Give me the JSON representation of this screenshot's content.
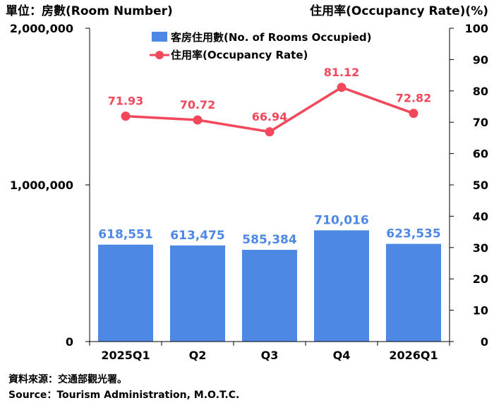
{
  "left_axis_title": "單位：房數(Room Number)",
  "right_axis_title": "住用率(Occupancy Rate)(%)",
  "source_zh": "資料來源：交通部觀光署。",
  "source_en": "Source：Tourism Administration, M.O.T.C.",
  "colors": {
    "bar": "#4E88E5",
    "line": "#F2485B"
  },
  "chart_data": {
    "type": "bar",
    "categories": [
      "2025Q1",
      "Q2",
      "Q3",
      "Q4",
      "2026Q1"
    ],
    "series": [
      {
        "name": "客房住用數(No. of Rooms Occupied)",
        "type": "bar",
        "axis": "left",
        "values": [
          618551,
          613475,
          585384,
          710016,
          623535
        ],
        "labels": [
          "618,551",
          "613,475",
          "585,384",
          "710,016",
          "623,535"
        ]
      },
      {
        "name": "住用率(Occupancy Rate)",
        "type": "line",
        "axis": "right",
        "values": [
          71.93,
          70.72,
          66.94,
          81.12,
          72.82
        ],
        "labels": [
          "71.93",
          "70.72",
          "66.94",
          "81.12",
          "72.82"
        ]
      }
    ],
    "ylim_left": [
      0,
      2000000
    ],
    "ylim_right": [
      0,
      100
    ],
    "yticks_left": [
      "0",
      "1,000,000",
      "2,000,000"
    ],
    "yticks_right": [
      "0",
      "10",
      "20",
      "30",
      "40",
      "50",
      "60",
      "70",
      "80",
      "90",
      "100"
    ],
    "yticks_right_values": [
      0,
      10,
      20,
      30,
      40,
      50,
      60,
      70,
      80,
      90,
      100
    ],
    "yticks_left_values": [
      0,
      1000000,
      2000000
    ],
    "grid": false,
    "legend": "top-left"
  }
}
